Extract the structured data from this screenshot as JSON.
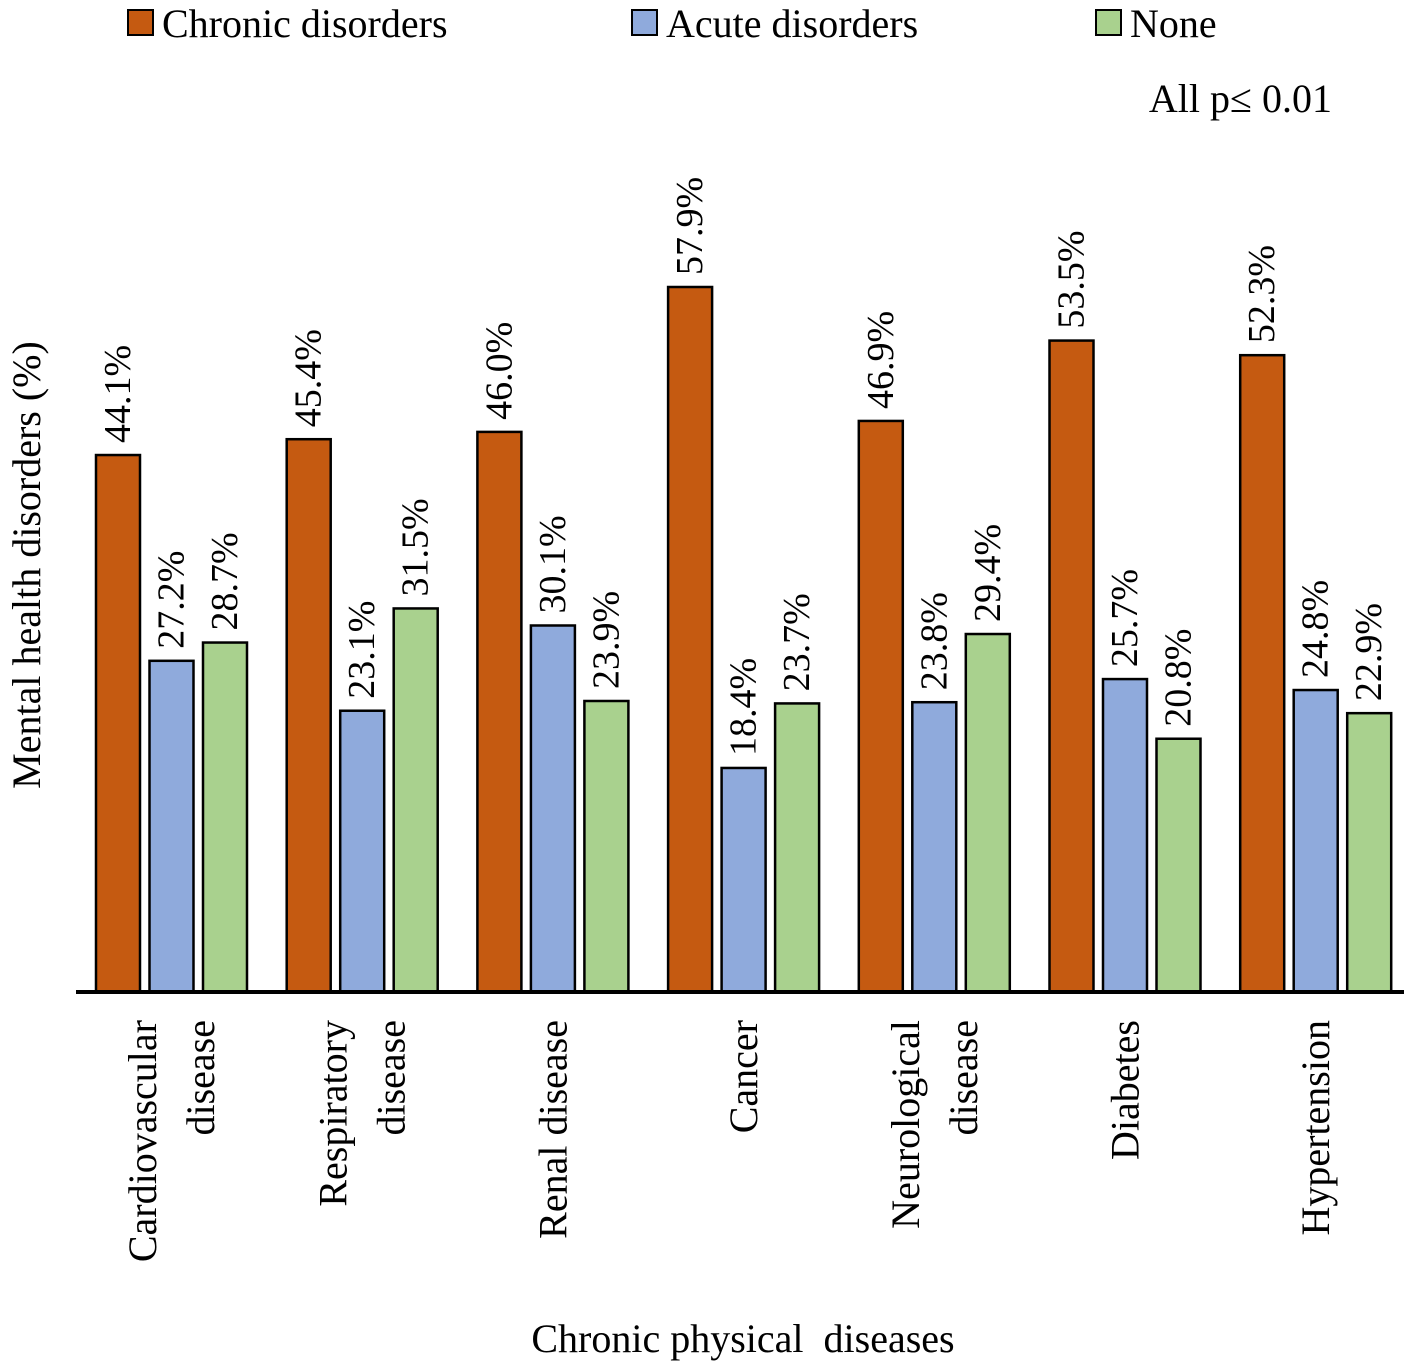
{
  "chart_data": {
    "type": "bar",
    "title": "",
    "xlabel": "Chronic physical  diseases",
    "ylabel": "Mental health disorders (%)",
    "annotation": "All p≤ 0.01",
    "ylim": [
      0,
      60
    ],
    "grid": false,
    "legend_placement": "top",
    "categories": [
      [
        "Cardiovascular",
        "disease"
      ],
      [
        "Respiratory",
        "disease"
      ],
      [
        "Renal disease"
      ],
      [
        "Cancer"
      ],
      [
        "Neurological",
        "disease"
      ],
      [
        "Diabetes"
      ],
      [
        "Hypertension"
      ]
    ],
    "series": [
      {
        "name": "Chronic disorders",
        "color": "#C55A11",
        "values": [
          44.1,
          45.4,
          46.0,
          57.9,
          46.9,
          53.5,
          52.3
        ],
        "labels": [
          "44.1%",
          "45.4%",
          "46.0%",
          "57.9%",
          "46.9%",
          "53.5%",
          "52.3%"
        ]
      },
      {
        "name": "Acute disorders",
        "color": "#8FAADC",
        "values": [
          27.2,
          23.1,
          30.1,
          18.4,
          23.8,
          25.7,
          24.8
        ],
        "labels": [
          "27.2%",
          "23.1%",
          "30.1%",
          "18.4%",
          "23.8%",
          "25.7%",
          "24.8%"
        ]
      },
      {
        "name": "None",
        "color": "#A9D18E",
        "values": [
          28.7,
          31.5,
          23.9,
          23.7,
          29.4,
          20.8,
          22.9
        ],
        "labels": [
          "28.7%",
          "31.5%",
          "23.9%",
          "23.7%",
          "29.4%",
          "20.8%",
          "22.9%"
        ]
      }
    ]
  }
}
